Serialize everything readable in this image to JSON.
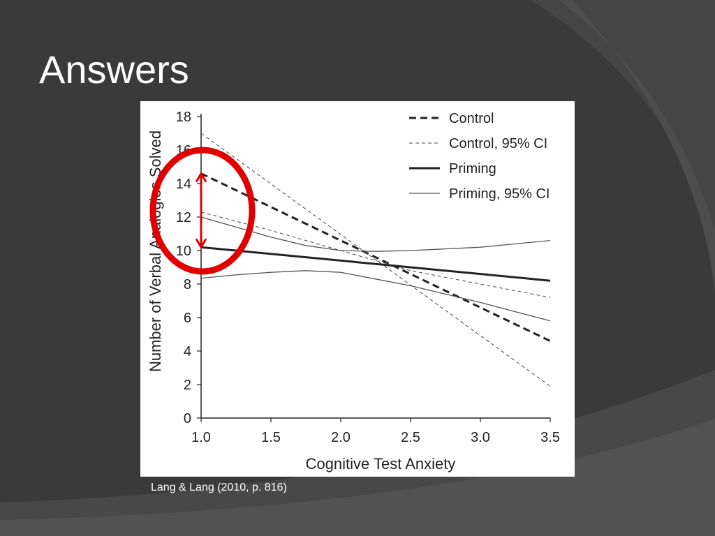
{
  "slide": {
    "title": "Answers",
    "caption": "Lang & Lang (2010, p. 816)",
    "colors": {
      "background": "#3a3a3a",
      "title": "#ffffff",
      "annotation": "#e00000"
    }
  },
  "chart_data": {
    "type": "line",
    "title": "",
    "xlabel": "Cognitive Test Anxiety",
    "ylabel": "Number of Verbal Analogies Solved",
    "xlim": [
      1.0,
      3.5
    ],
    "ylim": [
      0,
      18
    ],
    "xticks": [
      "1.0",
      "1.5",
      "2.0",
      "2.5",
      "3.0",
      "3.5"
    ],
    "yticks": [
      "0",
      "2",
      "4",
      "6",
      "8",
      "10",
      "12",
      "14",
      "16",
      "18"
    ],
    "grid": false,
    "legend_position": "top-right",
    "series": [
      {
        "name": "Control",
        "style": "dashed-thick",
        "color": "#222222",
        "x": [
          1.0,
          3.5
        ],
        "y": [
          14.6,
          4.6
        ]
      },
      {
        "name": "Control, 95% CI",
        "style": "dashed-thin",
        "color": "#444444",
        "x": [
          1.0,
          3.5
        ],
        "y": [
          17.0,
          1.9
        ]
      },
      {
        "name": "Control, 95% CI",
        "style": "dashed-thin",
        "color": "#444444",
        "legend": false,
        "x": [
          1.0,
          1.5,
          2.0,
          2.5,
          3.0,
          3.5
        ],
        "y": [
          12.3,
          11.2,
          10.0,
          8.8,
          8.0,
          7.2
        ]
      },
      {
        "name": "Priming",
        "style": "solid-thick",
        "color": "#222222",
        "x": [
          1.0,
          3.5
        ],
        "y": [
          10.2,
          8.2
        ]
      },
      {
        "name": "Priming, 95% CI",
        "style": "solid-thin",
        "color": "#555555",
        "x": [
          1.0,
          1.25,
          1.5,
          1.75,
          2.0,
          2.25,
          2.5,
          2.75,
          3.0,
          3.25,
          3.5
        ],
        "y": [
          12.0,
          11.4,
          10.8,
          10.3,
          10.0,
          9.95,
          10.0,
          10.1,
          10.2,
          10.4,
          10.6
        ]
      },
      {
        "name": "Priming, 95% CI",
        "style": "solid-thin",
        "color": "#555555",
        "legend": false,
        "x": [
          1.0,
          1.25,
          1.5,
          1.75,
          2.0,
          2.25,
          2.5,
          2.75,
          3.0,
          3.25,
          3.5
        ],
        "y": [
          8.35,
          8.55,
          8.7,
          8.8,
          8.7,
          8.3,
          7.9,
          7.4,
          6.9,
          6.35,
          5.8
        ]
      }
    ],
    "annotations": [
      {
        "type": "ellipse",
        "color": "#e00000",
        "center": [
          1.0,
          12.4
        ],
        "note": ""
      },
      {
        "type": "double-arrow",
        "color": "#e00000",
        "x": 1.0,
        "y_from": 10.2,
        "y_to": 14.6
      }
    ]
  }
}
